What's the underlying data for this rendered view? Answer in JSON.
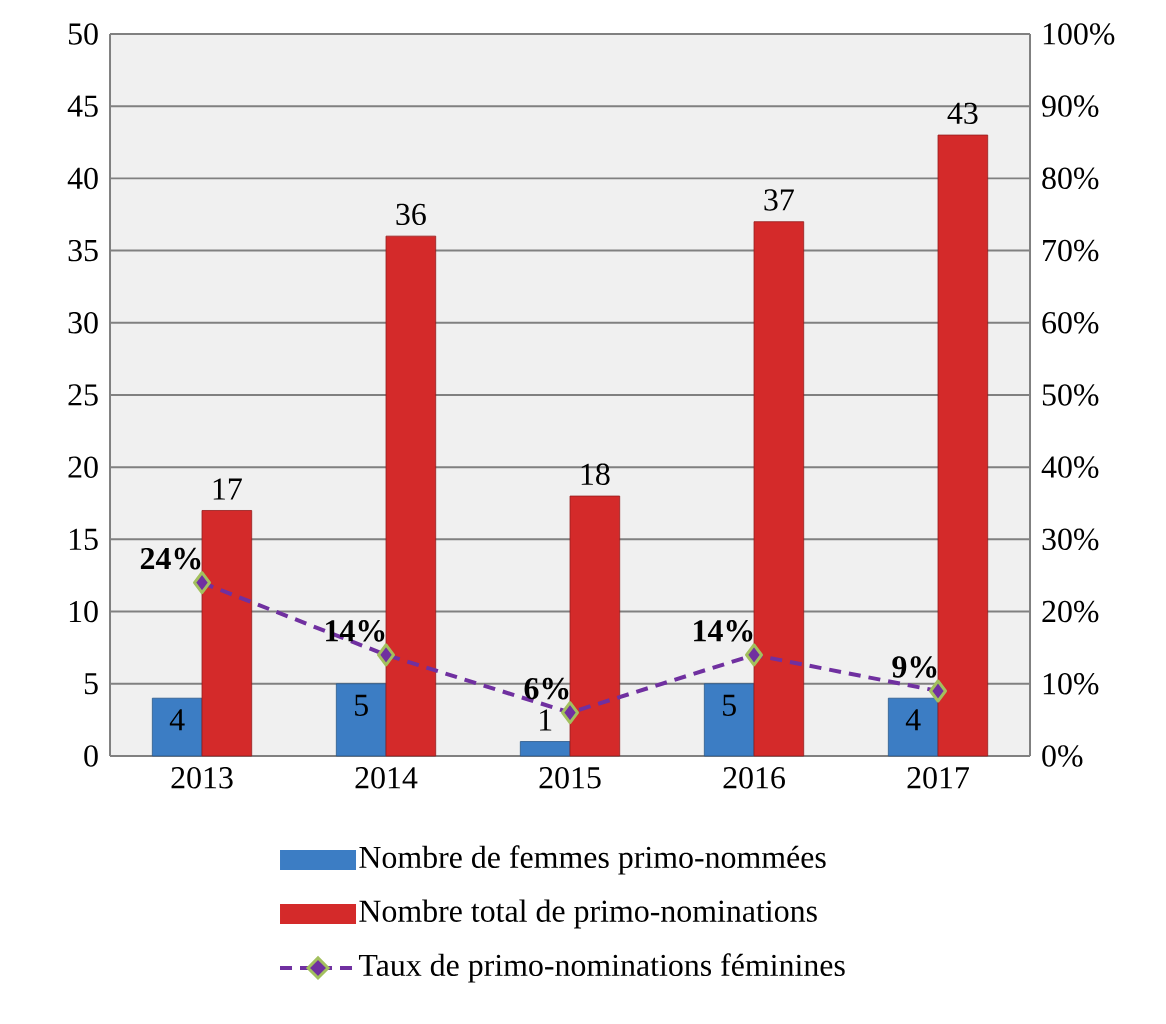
{
  "chart_data": {
    "type": "bar",
    "categories": [
      "2013",
      "2014",
      "2015",
      "2016",
      "2017"
    ],
    "series": [
      {
        "name": "Nombre de femmes primo-nommées",
        "color": "#3c7dc4",
        "values": [
          4,
          5,
          1,
          5,
          4
        ],
        "value_labels": [
          "4",
          "5",
          "1",
          "5",
          "4"
        ]
      },
      {
        "name": "Nombre total de primo-nominations",
        "color": "#d42a2a",
        "values": [
          17,
          36,
          18,
          37,
          43
        ],
        "value_labels": [
          "17",
          "36",
          "18",
          "37",
          "43"
        ]
      },
      {
        "name": "Taux de primo-nominations féminines",
        "type": "line",
        "axis": "y2",
        "color": "#7030a0",
        "marker": "diamond",
        "line_style": "dashed",
        "values": [
          24,
          14,
          6,
          14,
          9
        ],
        "value_labels": [
          "24%",
          "14%",
          "6%",
          "14%",
          "9%"
        ]
      }
    ],
    "ylim": [
      0,
      50
    ],
    "yticks": [
      0,
      5,
      10,
      15,
      20,
      25,
      30,
      35,
      40,
      45,
      50
    ],
    "y2lim": [
      0,
      100
    ],
    "y2ticks": [
      {
        "value": 0,
        "label": "0%"
      },
      {
        "value": 10,
        "label": "10%"
      },
      {
        "value": 20,
        "label": "20%"
      },
      {
        "value": 30,
        "label": "30%"
      },
      {
        "value": 40,
        "label": "40%"
      },
      {
        "value": 50,
        "label": "50%"
      },
      {
        "value": 60,
        "label": "60%"
      },
      {
        "value": 70,
        "label": "70%"
      },
      {
        "value": 80,
        "label": "80%"
      },
      {
        "value": 90,
        "label": "90%"
      },
      {
        "value": 100,
        "label": "100%"
      }
    ],
    "grid": "y",
    "legend": "bottom"
  }
}
